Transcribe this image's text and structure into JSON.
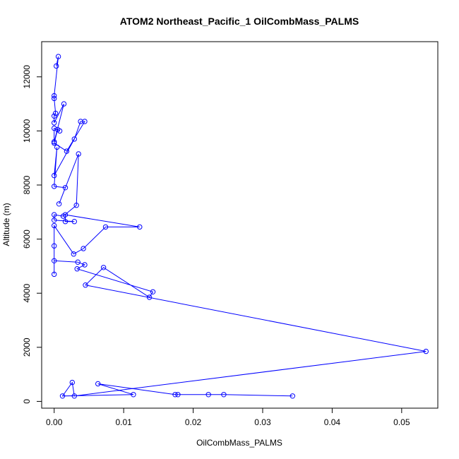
{
  "chart_data": {
    "type": "line",
    "title": "ATOM2 Northeast_Pacific_1 OilCombMass_PALMS",
    "xlabel": "OilCombMass_PALMS",
    "ylabel": "Altitude (m)",
    "xlim": [
      -0.0018,
      0.0552
    ],
    "ylim": [
      -250,
      13300
    ],
    "xticks": [
      0.0,
      0.01,
      0.02,
      0.03,
      0.04,
      0.05
    ],
    "xtick_labels": [
      "0.00",
      "0.01",
      "0.02",
      "0.03",
      "0.04",
      "0.05"
    ],
    "yticks": [
      0,
      2000,
      4000,
      6000,
      8000,
      10000,
      12000
    ],
    "ytick_labels": [
      "0",
      "2000",
      "4000",
      "6000",
      "8000",
      "10000",
      "12000"
    ],
    "grid": false,
    "series": [
      {
        "color": "#0000ff",
        "marker": "open-circle",
        "x": [
          0.0003,
          0.0006,
          0.0,
          0.0,
          0.0002,
          0.0,
          0.0,
          0.0014,
          0.0,
          0.0,
          0.0008,
          0.0005,
          0.0,
          0.0018,
          0.0044,
          0.0038,
          0.0029,
          0.0,
          0.0004,
          0.0,
          0.0016,
          0.0007,
          0.0035,
          0.0032,
          0.0013,
          0.0,
          0.0,
          0.0029,
          0.0016,
          0.0016,
          0.0123,
          0.0074,
          0.0042,
          0.0028,
          0.0,
          0.0,
          0.0,
          0.0,
          0.0034,
          0.0044,
          0.0033,
          0.0142,
          0.0137,
          0.0071,
          0.0045,
          0.0535,
          0.0029,
          0.0026,
          0.0012,
          0.0114,
          0.0063,
          0.0174,
          0.0178,
          0.0222,
          0.0244,
          0.0343
        ],
        "y": [
          12400,
          12750,
          11300,
          11200,
          10650,
          10550,
          10300,
          11000,
          9600,
          10100,
          10000,
          10050,
          9550,
          9250,
          10350,
          10350,
          9700,
          8350,
          9400,
          7950,
          7900,
          7300,
          9150,
          7250,
          6850,
          6900,
          6700,
          6650,
          6650,
          6900,
          6450,
          6450,
          5650,
          5450,
          6500,
          5750,
          4700,
          5200,
          5150,
          5050,
          4900,
          4050,
          3850,
          4950,
          4300,
          1850,
          200,
          700,
          200,
          250,
          650,
          250,
          250,
          250,
          250,
          200
        ]
      }
    ]
  }
}
